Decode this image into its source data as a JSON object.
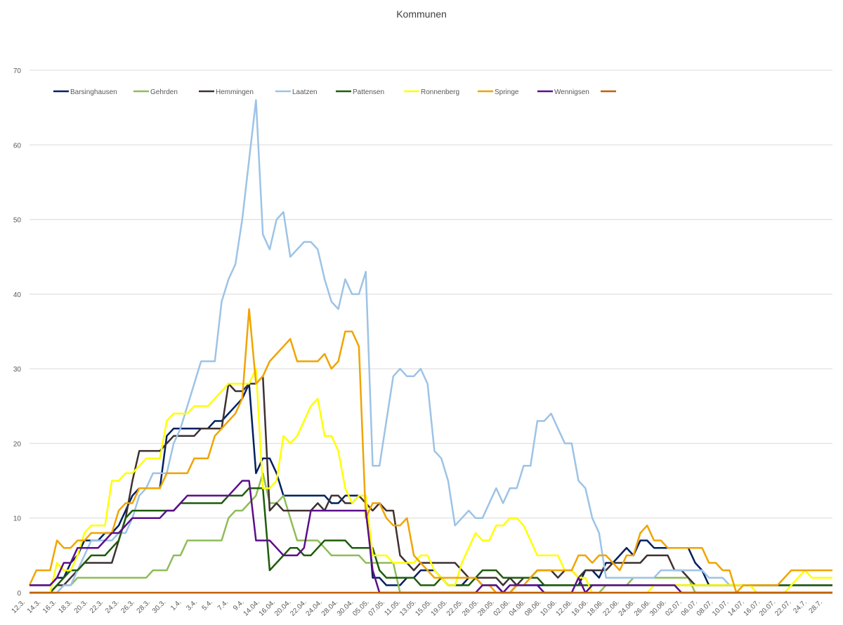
{
  "chart_data": {
    "type": "line",
    "title": "Kommunen",
    "xlabel": "",
    "ylabel": "",
    "ylim": [
      0,
      70
    ],
    "yticks": [
      0,
      10,
      20,
      30,
      40,
      50,
      60,
      70
    ],
    "grid": "horizontal",
    "legend_position": "top-left",
    "x_tick_labels": [
      "12.3.",
      "14.3.",
      "16.3.",
      "18.3.",
      "20.3.",
      "22.3.",
      "24.3.",
      "26.3.",
      "28.3.",
      "30.3.",
      "1.4.",
      "3.4.",
      "5.4.",
      "7.4.",
      "9.4.",
      "14.04.",
      "16.04.",
      "20.04.",
      "22.04.",
      "24.04.",
      "28.04.",
      "30.04.",
      "05.05.",
      "07.05.",
      "11.05.",
      "13.05.",
      "15.05.",
      "19.05.",
      "22.05.",
      "26.05.",
      "28.05.",
      "02.06.",
      "04.06.",
      "08.06.",
      "10.06.",
      "12.06.",
      "16.06.",
      "18.06.",
      "22.06.",
      "24.06.",
      "26.06.",
      "30.06.",
      "02.07.",
      "06.07.",
      "08.07.",
      "10.07.",
      "14.07.",
      "16.07.",
      "20.07.",
      "22.07.",
      "24.7.",
      "28.7."
    ],
    "series": [
      {
        "name": "Barsinghausen",
        "color": "#002060",
        "values": [
          1,
          1,
          1,
          1,
          2,
          2,
          4,
          5,
          7,
          7,
          7,
          8,
          8,
          9,
          11,
          13,
          14,
          14,
          14,
          14,
          21,
          22,
          22,
          22,
          22,
          22,
          22,
          23,
          23,
          24,
          25,
          26,
          28,
          16,
          18,
          18,
          16,
          13,
          13,
          13,
          13,
          13,
          13,
          13,
          12,
          12,
          13,
          13,
          13,
          13,
          2,
          2,
          1,
          1,
          1,
          2,
          2,
          3,
          3,
          3,
          2,
          1,
          1,
          1,
          2,
          2,
          1,
          1,
          1,
          0,
          0,
          1,
          1,
          1,
          1,
          1,
          1,
          1,
          1,
          1,
          1,
          3,
          3,
          2,
          4,
          4,
          5,
          6,
          5,
          7,
          7,
          6,
          6,
          6,
          6,
          6,
          6,
          4,
          3,
          1,
          1,
          1,
          1,
          1,
          1,
          1,
          1,
          1,
          1,
          1,
          1,
          1,
          1,
          1,
          1,
          1,
          1,
          1
        ]
      },
      {
        "name": "Gehrden",
        "color": "#8FBC5A",
        "values": [
          0,
          0,
          0,
          0,
          0,
          1,
          1,
          2,
          2,
          2,
          2,
          2,
          2,
          2,
          2,
          2,
          2,
          2,
          3,
          3,
          3,
          5,
          5,
          7,
          7,
          7,
          7,
          7,
          7,
          10,
          11,
          11,
          12,
          13,
          16,
          12,
          12,
          13,
          10,
          7,
          7,
          7,
          7,
          6,
          5,
          5,
          5,
          5,
          5,
          4,
          4,
          4,
          4,
          4,
          0,
          0,
          0,
          0,
          0,
          0,
          0,
          0,
          0,
          0,
          0,
          0,
          0,
          0,
          0,
          0,
          0,
          0,
          0,
          0,
          0,
          0,
          0,
          0,
          0,
          0,
          0,
          0,
          0,
          0,
          1,
          1,
          1,
          1,
          2,
          2,
          2,
          2,
          2,
          2,
          2,
          2,
          2,
          0,
          0,
          0,
          0,
          0,
          0,
          0,
          0,
          0,
          0,
          0,
          0,
          0,
          0,
          0,
          0,
          0,
          0,
          0,
          0,
          0
        ]
      },
      {
        "name": "Hemmingen",
        "color": "#3F3130",
        "values": [
          0,
          0,
          0,
          0,
          1,
          1,
          2,
          3,
          4,
          4,
          4,
          4,
          4,
          7,
          10,
          15,
          19,
          19,
          19,
          19,
          20,
          21,
          21,
          21,
          21,
          22,
          22,
          22,
          22,
          28,
          27,
          27,
          28,
          28,
          29,
          11,
          12,
          11,
          11,
          11,
          11,
          11,
          12,
          11,
          13,
          13,
          12,
          12,
          13,
          12,
          11,
          12,
          11,
          11,
          5,
          4,
          3,
          4,
          4,
          4,
          4,
          4,
          4,
          3,
          2,
          2,
          2,
          2,
          2,
          1,
          2,
          1,
          2,
          2,
          3,
          3,
          3,
          2,
          3,
          3,
          2,
          3,
          3,
          3,
          3,
          4,
          4,
          4,
          4,
          4,
          5,
          5,
          5,
          5,
          3,
          3,
          2,
          1,
          1,
          1,
          1,
          1,
          1,
          1,
          1,
          1,
          1,
          1,
          1,
          1,
          1,
          1,
          1,
          1,
          1,
          1,
          1,
          1
        ]
      },
      {
        "name": "Laatzen",
        "color": "#9DC3E6",
        "values": [
          0,
          0,
          0,
          0,
          0,
          1,
          1,
          3,
          5,
          7,
          7,
          7,
          7,
          8,
          8,
          10,
          13,
          14,
          16,
          16,
          16,
          20,
          22,
          25,
          28,
          31,
          31,
          31,
          39,
          42,
          44,
          50,
          58,
          66,
          48,
          46,
          50,
          51,
          45,
          46,
          47,
          47,
          46,
          42,
          39,
          38,
          42,
          40,
          40,
          43,
          17,
          17,
          23,
          29,
          30,
          29,
          29,
          30,
          28,
          19,
          18,
          15,
          9,
          10,
          11,
          10,
          10,
          12,
          14,
          12,
          14,
          14,
          17,
          17,
          23,
          23,
          24,
          22,
          20,
          20,
          15,
          14,
          10,
          8,
          2,
          2,
          2,
          2,
          2,
          2,
          2,
          2,
          3,
          3,
          3,
          3,
          3,
          3,
          3,
          2,
          2,
          2,
          1,
          1,
          1,
          1,
          1,
          1,
          1,
          1,
          1,
          1,
          1,
          1,
          1,
          1,
          1,
          1
        ]
      },
      {
        "name": "Pattensen",
        "color": "#1E5C0A",
        "values": [
          0,
          0,
          0,
          0,
          1,
          2,
          3,
          3,
          4,
          5,
          5,
          5,
          6,
          7,
          10,
          11,
          11,
          11,
          11,
          11,
          11,
          11,
          12,
          12,
          12,
          12,
          12,
          12,
          12,
          13,
          13,
          13,
          14,
          14,
          14,
          3,
          4,
          5,
          6,
          6,
          5,
          5,
          6,
          7,
          7,
          7,
          7,
          6,
          6,
          6,
          6,
          3,
          2,
          2,
          2,
          2,
          2,
          1,
          1,
          1,
          2,
          1,
          1,
          1,
          1,
          2,
          3,
          3,
          3,
          2,
          2,
          2,
          2,
          2,
          2,
          1,
          1,
          1,
          1,
          1,
          1,
          1,
          1,
          1,
          1,
          1,
          1,
          1,
          1,
          1,
          1,
          1,
          1,
          1,
          1,
          1,
          1,
          1,
          1,
          1,
          1,
          1,
          1,
          1,
          1,
          1,
          1,
          1,
          1,
          1,
          1,
          1,
          1,
          1,
          1,
          1,
          1,
          1
        ]
      },
      {
        "name": "Ronnenberg",
        "color": "#FFFF00",
        "values": [
          0,
          0,
          0,
          0,
          4,
          3,
          3,
          5,
          8,
          9,
          9,
          9,
          15,
          15,
          16,
          16,
          17,
          18,
          18,
          18,
          23,
          24,
          24,
          24,
          25,
          25,
          25,
          26,
          27,
          28,
          28,
          28,
          28,
          30,
          14,
          14,
          15,
          21,
          20,
          21,
          23,
          25,
          26,
          21,
          21,
          19,
          14,
          12,
          13,
          13,
          5,
          5,
          5,
          4,
          4,
          4,
          4,
          5,
          5,
          3,
          2,
          1,
          1,
          4,
          6,
          8,
          7,
          7,
          9,
          9,
          10,
          10,
          9,
          7,
          5,
          5,
          5,
          5,
          3,
          3,
          2,
          2,
          0,
          0,
          0,
          0,
          0,
          0,
          0,
          0,
          0,
          1,
          1,
          1,
          1,
          1,
          1,
          1,
          1,
          1,
          1,
          1,
          1,
          1,
          1,
          1,
          0,
          0,
          0,
          0,
          0,
          1,
          2,
          3,
          2,
          2,
          2,
          2
        ]
      },
      {
        "name": "Springe",
        "color": "#F0A400",
        "values": [
          1,
          3,
          3,
          3,
          7,
          6,
          6,
          7,
          7,
          8,
          8,
          8,
          8,
          11,
          12,
          12,
          14,
          14,
          14,
          14,
          16,
          16,
          16,
          16,
          18,
          18,
          18,
          21,
          22,
          23,
          24,
          26,
          38,
          28,
          29,
          31,
          32,
          33,
          34,
          31,
          31,
          31,
          31,
          32,
          30,
          31,
          35,
          35,
          33,
          10,
          12,
          12,
          10,
          9,
          9,
          10,
          5,
          4,
          3,
          2,
          2,
          2,
          2,
          2,
          2,
          2,
          1,
          1,
          0,
          0,
          0,
          1,
          1,
          2,
          3,
          3,
          3,
          3,
          3,
          3,
          5,
          5,
          4,
          5,
          5,
          4,
          3,
          5,
          5,
          8,
          9,
          7,
          7,
          6,
          6,
          6,
          6,
          6,
          6,
          4,
          4,
          3,
          3,
          0,
          1,
          1,
          1,
          1,
          1,
          1,
          2,
          3,
          3,
          3,
          3,
          3,
          3,
          3
        ]
      },
      {
        "name": "Wennigsen",
        "color": "#5B0F8A",
        "values": [
          1,
          1,
          1,
          1,
          2,
          4,
          4,
          6,
          6,
          6,
          6,
          7,
          8,
          8,
          9,
          10,
          10,
          10,
          10,
          10,
          11,
          11,
          12,
          13,
          13,
          13,
          13,
          13,
          13,
          13,
          14,
          15,
          15,
          7,
          7,
          7,
          6,
          5,
          5,
          5,
          6,
          11,
          11,
          11,
          11,
          11,
          11,
          11,
          11,
          11,
          3,
          0,
          0,
          0,
          0,
          0,
          0,
          0,
          0,
          0,
          0,
          0,
          0,
          0,
          0,
          0,
          1,
          1,
          1,
          0,
          1,
          1,
          1,
          1,
          1,
          0,
          0,
          0,
          0,
          0,
          2,
          0,
          1,
          1,
          1,
          1,
          1,
          1,
          1,
          1,
          1,
          1,
          1,
          1,
          1,
          0,
          0,
          0,
          0,
          0,
          0,
          0,
          0,
          0,
          0,
          0,
          0,
          0,
          0,
          0,
          0,
          0,
          0,
          0,
          0,
          0,
          0,
          0
        ]
      },
      {
        "name": "",
        "color": "#C06000",
        "values": [
          0,
          0,
          0,
          0,
          0,
          0,
          0,
          0,
          0,
          0,
          0,
          0,
          0,
          0,
          0,
          0,
          0,
          0,
          0,
          0,
          0,
          0,
          0,
          0,
          0,
          0,
          0,
          0,
          0,
          0,
          0,
          0,
          0,
          0,
          0,
          0,
          0,
          0,
          0,
          0,
          0,
          0,
          0,
          0,
          0,
          0,
          0,
          0,
          0,
          0,
          0,
          0,
          0,
          0,
          0,
          0,
          0,
          0,
          0,
          0,
          0,
          0,
          0,
          0,
          0,
          0,
          0,
          0,
          0,
          0,
          0,
          0,
          0,
          0,
          0,
          0,
          0,
          0,
          0,
          0,
          0,
          0,
          0,
          0,
          0,
          0,
          0,
          0,
          0,
          0,
          0,
          0,
          0,
          0,
          0,
          0,
          0,
          0,
          0,
          0,
          0,
          0,
          0,
          0,
          0,
          0,
          0,
          0,
          0,
          0,
          0,
          0,
          0,
          0,
          0,
          0,
          0,
          0
        ]
      }
    ]
  }
}
